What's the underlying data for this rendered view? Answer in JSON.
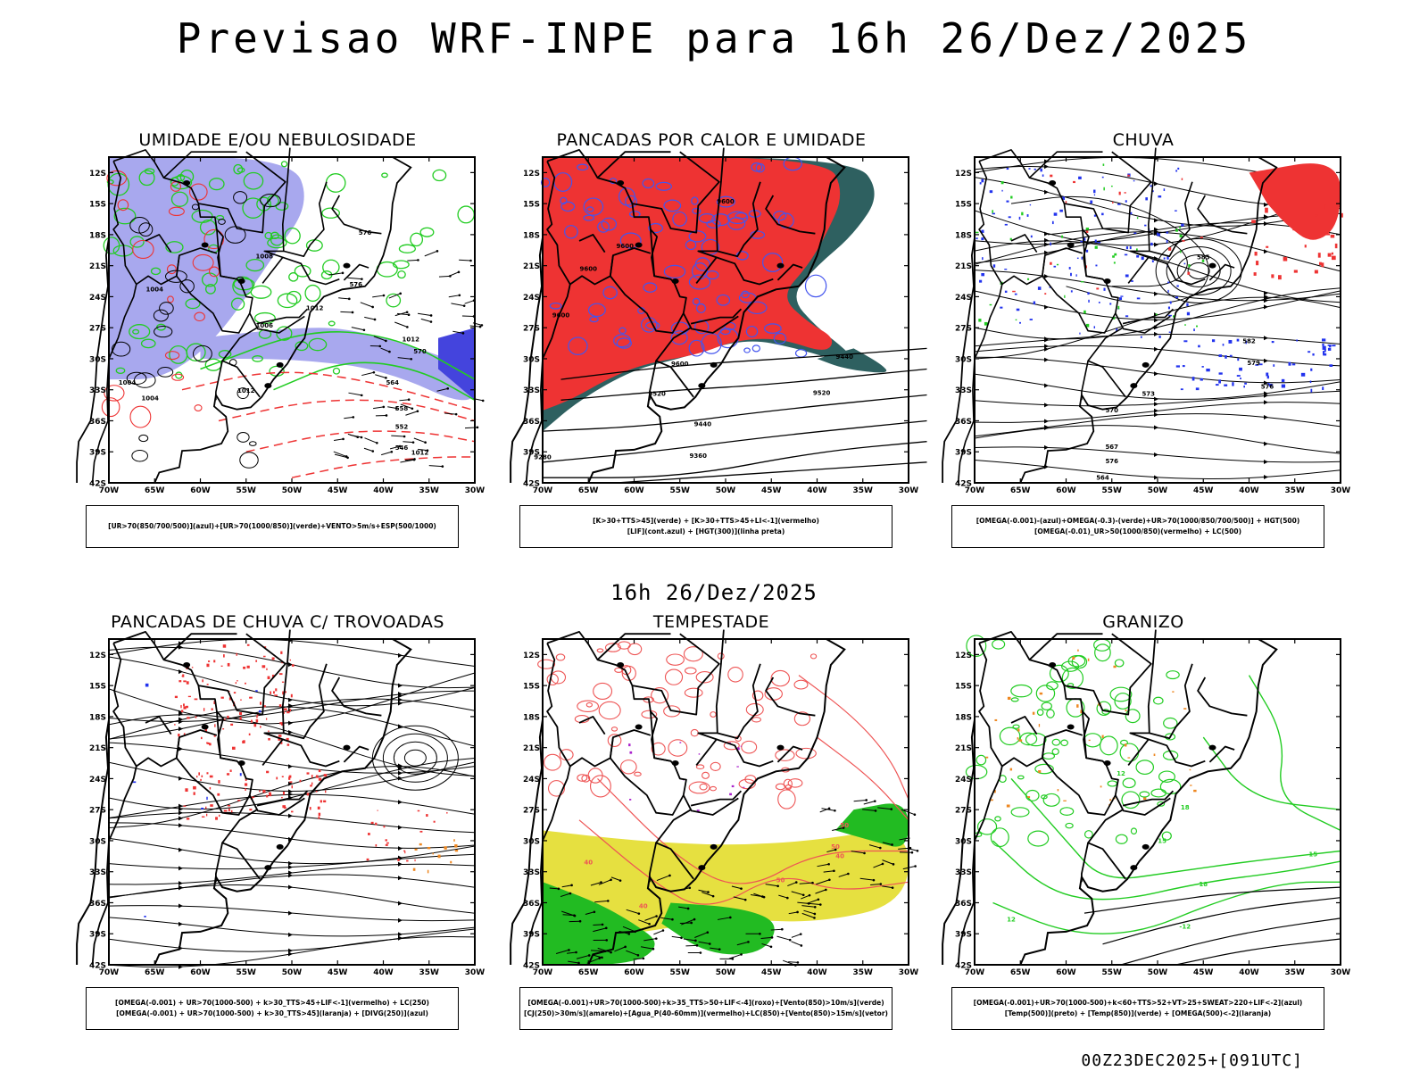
{
  "title": "Previsao WRF-INPE  para 16h 26/Dez/2025",
  "middle_label": "16h 26/Dez/2025",
  "footer": "00Z23DEC2025+[091UTC]",
  "axes": {
    "lat_ticks": [
      "12S",
      "15S",
      "18S",
      "21S",
      "24S",
      "27S",
      "30S",
      "33S",
      "36S",
      "39S",
      "42S"
    ],
    "lon_ticks": [
      "70W",
      "65W",
      "60W",
      "55W",
      "50W",
      "45W",
      "40W",
      "35W",
      "30W"
    ]
  },
  "panels": [
    {
      "title": "UMIDADE E/OU NEBULOSIDADE",
      "legend": [
        "[UR>70(850/700/500)](azul)+[UR>70(1000/850)](verde)+VENTO>5m/s+ESP(500/1000)"
      ],
      "labels": [
        "1008",
        "1004",
        "1004",
        "1012",
        "1012",
        "1012",
        "1012",
        "1006",
        "1004",
        "576",
        "576",
        "570",
        "564",
        "558",
        "552",
        "546"
      ]
    },
    {
      "title": "PANCADAS POR CALOR E UMIDADE",
      "legend": [
        "[K>30+TTS>45](verde) + [K>30+TTS>45+LI<-1](vermelho)",
        "[LIF](cont.azul) + [HGT(300)](linha preta)"
      ],
      "labels": [
        "9600",
        "9600",
        "9600",
        "9600",
        "9600",
        "9520",
        "9520",
        "9440",
        "9360",
        "9280",
        "9440"
      ]
    },
    {
      "title": "CHUVA",
      "legend": [
        "[OMEGA(-0.001)-(azul)+OMEGA(-0.3)-(verde)+UR>70(1000/850/700/500)] + HGT(500)",
        "[OMEGA(-0.01)_UR>50(1000/850)(vermelho) + LC(500)"
      ],
      "labels": [
        "585",
        "582",
        "579",
        "576",
        "573",
        "570",
        "567",
        "576",
        "564"
      ]
    },
    {
      "title": "PANCADAS DE CHUVA C/ TROVOADAS",
      "legend": [
        "[OMEGA(-0.001) + UR>70(1000-500) + k>30_TTS>45+LIF<-1](vermelho) + LC(250)",
        "[OMEGA(-0.001) + UR>70(1000-500) + k>30_TTS>45](laranja) + [DIVG(250)](azul)"
      ],
      "labels": []
    },
    {
      "title": "TEMPESTADE",
      "legend": [
        "[OMEGA(-0.001)+UR>70(1000-500)+k>35_TTS>50+LIF<-4](roxo)+[Vento(850)>10m/s](verde)",
        "[CJ(250)>30m/s](amarelo)+[Agua_P(40-60mm)](vermelho)+LC(850)+[Vento(850)>15m/s](vetor)"
      ],
      "labels": [
        "40",
        "50",
        "50",
        "40",
        "40",
        "50"
      ]
    },
    {
      "title": "GRANIZO",
      "legend": [
        "[OMEGA(-0.001)+UR>70(1000-500)+k<60+TTS>52+VT>25+SWEAT>220+LIF<-2](azul)",
        "[Temp(500)](preto) + [Temp(850)](verde) + [OMEGA(500)<-2](laranja)"
      ],
      "labels": [
        "12",
        "15",
        "18",
        "12",
        "-12",
        "15",
        "18"
      ]
    }
  ],
  "colors": {
    "blue_fill": "#a8a8ee",
    "green": "#22cc22",
    "red": "#ee3333",
    "dark_teal": "#2e6060",
    "yellow": "#e6e040",
    "bright_green": "#22bb22",
    "orange": "#ee8822",
    "purple": "#aa22cc",
    "blue": "#2233ee"
  }
}
